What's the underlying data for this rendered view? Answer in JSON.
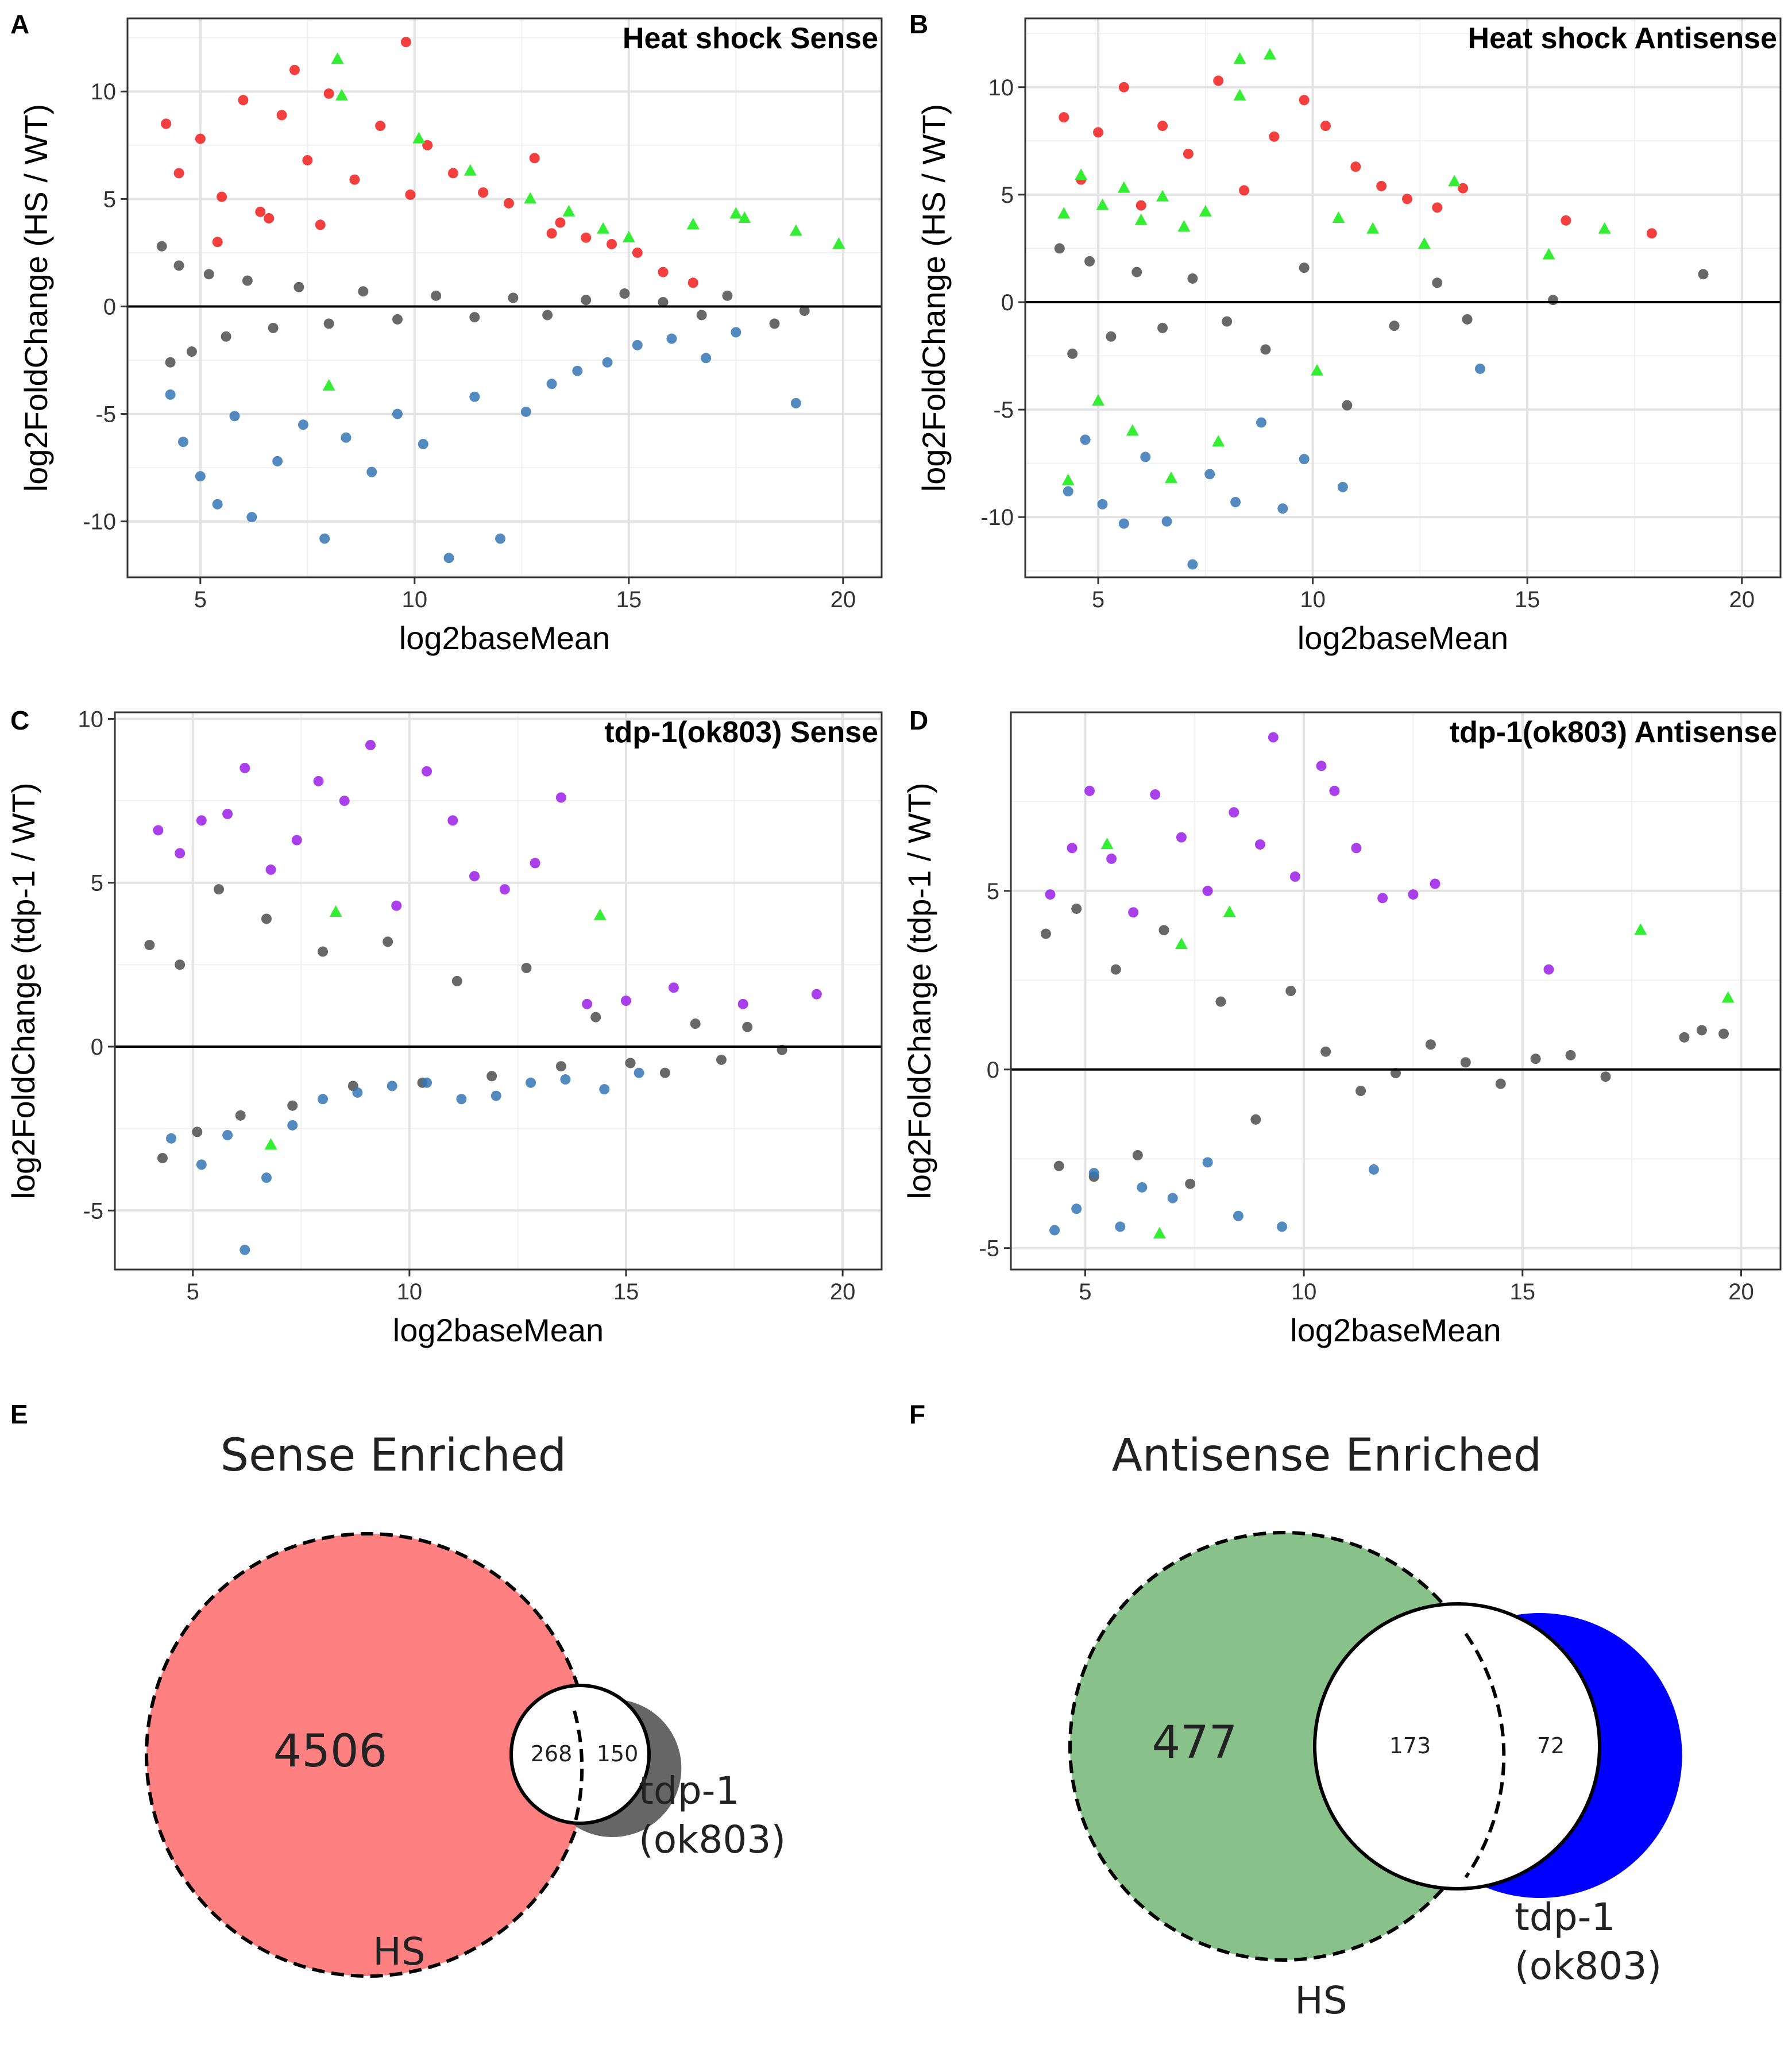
{
  "panel_letters": [
    "A",
    "B",
    "C",
    "D",
    "E",
    "F"
  ],
  "chart_data": [
    {
      "id": "A",
      "type": "scatter",
      "title": "Heat shock Sense",
      "xlabel": "log2baseMean",
      "ylabel": "log2FoldChange (HS / WT)",
      "xlim": [
        3.3,
        20.9
      ],
      "ylim": [
        -12.6,
        13.4
      ],
      "xticks": [
        5,
        10,
        15,
        20
      ],
      "yticks": [
        -10,
        -5,
        0,
        5,
        10
      ],
      "grid": true,
      "hline": 0,
      "series": [
        {
          "color": "#4d4d4d",
          "shape": "circle",
          "x": [
            4.1,
            4.3,
            4.5,
            4.8,
            5.2,
            5.6,
            6.1,
            6.7,
            7.3,
            8.0,
            8.8,
            9.6,
            10.5,
            11.4,
            12.3,
            13.1,
            14.0,
            14.9,
            15.8,
            16.7,
            17.3,
            18.4,
            19.1
          ],
          "y": [
            2.8,
            -2.6,
            1.9,
            -2.1,
            1.5,
            -1.4,
            1.2,
            -1.0,
            0.9,
            -0.8,
            0.7,
            -0.6,
            0.5,
            -0.5,
            0.4,
            -0.4,
            0.3,
            0.6,
            0.2,
            -0.4,
            0.5,
            -0.8,
            -0.2
          ]
        },
        {
          "color": "#f21d1d",
          "shape": "circle",
          "x": [
            4.2,
            4.5,
            5.0,
            5.5,
            6.0,
            6.4,
            6.9,
            7.2,
            7.5,
            8.0,
            8.6,
            9.2,
            9.8,
            10.3,
            10.9,
            11.6,
            12.2,
            12.8,
            13.4,
            14.0,
            14.6,
            15.2,
            15.8,
            16.5,
            13.2,
            9.9,
            7.8,
            6.6,
            5.4
          ],
          "y": [
            8.5,
            6.2,
            7.8,
            5.1,
            9.6,
            4.4,
            8.9,
            11.0,
            6.8,
            9.9,
            5.9,
            8.4,
            12.3,
            7.5,
            6.2,
            5.3,
            4.8,
            6.9,
            3.9,
            3.2,
            2.9,
            2.5,
            1.6,
            1.1,
            3.4,
            5.2,
            3.8,
            4.1,
            3.0
          ]
        },
        {
          "color": "#3575b5",
          "shape": "circle",
          "x": [
            4.3,
            4.6,
            5.0,
            5.4,
            5.8,
            6.2,
            6.8,
            7.4,
            7.9,
            8.4,
            9.0,
            9.6,
            10.2,
            10.8,
            11.4,
            12.0,
            12.6,
            13.2,
            13.8,
            14.5,
            15.2,
            16.0,
            16.8,
            17.5,
            18.9
          ],
          "y": [
            -4.1,
            -6.3,
            -7.9,
            -9.2,
            -5.1,
            -9.8,
            -7.2,
            -5.5,
            -10.8,
            -6.1,
            -7.7,
            -5.0,
            -6.4,
            -11.7,
            -4.2,
            -10.8,
            -4.9,
            -3.6,
            -3.0,
            -2.6,
            -1.8,
            -1.5,
            -2.4,
            -1.2,
            -4.5
          ]
        },
        {
          "color": "#33ee33",
          "shape": "triangle",
          "x": [
            8.2,
            8.3,
            10.1,
            11.3,
            12.7,
            13.6,
            14.4,
            15.0,
            16.5,
            17.5,
            17.7,
            18.9,
            19.9,
            8.0
          ],
          "y": [
            11.5,
            9.8,
            7.8,
            6.3,
            5.0,
            4.4,
            3.6,
            3.2,
            3.8,
            4.3,
            4.1,
            3.5,
            2.9,
            -3.7
          ]
        }
      ]
    },
    {
      "id": "B",
      "type": "scatter",
      "title": "Heat shock Antisense",
      "xlabel": "log2baseMean",
      "ylabel": "log2FoldChange (HS / WT)",
      "xlim": [
        3.3,
        20.9
      ],
      "ylim": [
        -12.8,
        13.2
      ],
      "xticks": [
        5,
        10,
        15,
        20
      ],
      "yticks": [
        -10,
        -5,
        0,
        5,
        10
      ],
      "grid": true,
      "hline": 0,
      "series": [
        {
          "color": "#4d4d4d",
          "shape": "circle",
          "x": [
            4.1,
            4.4,
            4.8,
            5.3,
            5.9,
            6.5,
            7.2,
            8.0,
            8.9,
            9.8,
            10.8,
            11.9,
            12.9,
            13.6,
            15.6,
            19.1
          ],
          "y": [
            2.5,
            -2.4,
            1.9,
            -1.6,
            1.4,
            -1.2,
            1.1,
            -0.9,
            -2.2,
            1.6,
            -4.8,
            -1.1,
            0.9,
            -0.8,
            0.1,
            1.3
          ]
        },
        {
          "color": "#f21d1d",
          "shape": "circle",
          "x": [
            4.2,
            4.6,
            5.0,
            5.6,
            6.0,
            6.5,
            7.1,
            7.8,
            8.4,
            9.1,
            9.8,
            10.3,
            11.0,
            11.6,
            12.2,
            12.9,
            13.5,
            15.9,
            17.9
          ],
          "y": [
            8.6,
            5.7,
            7.9,
            10.0,
            4.5,
            8.2,
            6.9,
            10.3,
            5.2,
            7.7,
            9.4,
            8.2,
            6.3,
            5.4,
            4.8,
            4.4,
            5.3,
            3.8,
            3.2
          ]
        },
        {
          "color": "#3575b5",
          "shape": "circle",
          "x": [
            4.3,
            4.7,
            5.1,
            5.6,
            6.1,
            6.6,
            7.2,
            7.6,
            8.2,
            8.8,
            9.3,
            9.8,
            10.7,
            13.9
          ],
          "y": [
            -8.8,
            -6.4,
            -9.4,
            -10.3,
            -7.2,
            -10.2,
            -12.2,
            -8.0,
            -9.3,
            -5.6,
            -9.6,
            -7.3,
            -8.6,
            -3.1
          ]
        },
        {
          "color": "#33ee33",
          "shape": "triangle",
          "x": [
            4.2,
            4.6,
            5.1,
            5.6,
            6.0,
            6.5,
            7.0,
            7.5,
            8.3,
            8.3,
            9.0,
            10.6,
            11.4,
            12.6,
            13.3,
            15.5,
            16.8,
            4.3,
            5.0,
            5.8,
            6.7,
            7.8,
            10.1
          ],
          "y": [
            4.1,
            5.9,
            4.5,
            5.3,
            3.8,
            4.9,
            3.5,
            4.2,
            11.3,
            9.6,
            11.5,
            3.9,
            3.4,
            2.7,
            5.6,
            2.2,
            3.4,
            -8.3,
            -4.6,
            -6.0,
            -8.2,
            -6.5,
            -3.2
          ]
        }
      ]
    },
    {
      "id": "C",
      "type": "scatter",
      "title": "tdp-1(ok803) Sense",
      "xlabel": "log2baseMean",
      "ylabel": "log2FoldChange (tdp-1 / WT)",
      "xlim": [
        3.2,
        20.9
      ],
      "ylim": [
        -6.8,
        10.2
      ],
      "xticks": [
        5,
        10,
        15,
        20
      ],
      "yticks": [
        -5,
        0,
        5,
        10
      ],
      "grid": true,
      "hline": 0,
      "series": [
        {
          "color": "#4d4d4d",
          "shape": "circle",
          "x": [
            4.0,
            4.3,
            4.7,
            5.1,
            5.6,
            6.1,
            6.7,
            7.3,
            8.0,
            8.7,
            9.5,
            10.3,
            11.1,
            11.9,
            12.7,
            13.5,
            14.3,
            15.1,
            15.9,
            16.6,
            17.2,
            17.8,
            18.6
          ],
          "y": [
            3.1,
            -3.4,
            2.5,
            -2.6,
            4.8,
            -2.1,
            3.9,
            -1.8,
            2.9,
            -1.2,
            3.2,
            -1.1,
            2.0,
            -0.9,
            2.4,
            -0.6,
            0.9,
            -0.5,
            -0.8,
            0.7,
            -0.4,
            0.6,
            -0.1
          ]
        },
        {
          "color": "#9a1ee8",
          "shape": "circle",
          "x": [
            4.2,
            4.7,
            5.2,
            5.8,
            6.2,
            6.8,
            7.4,
            7.9,
            8.5,
            9.1,
            9.7,
            10.4,
            11.0,
            11.5,
            12.2,
            12.9,
            13.5,
            14.1,
            15.0,
            16.1,
            17.7,
            19.4
          ],
          "y": [
            6.6,
            5.9,
            6.9,
            7.1,
            8.5,
            5.4,
            6.3,
            8.1,
            7.5,
            9.2,
            4.3,
            8.4,
            6.9,
            5.2,
            4.8,
            5.6,
            7.6,
            1.3,
            1.4,
            1.8,
            1.3,
            1.6
          ]
        },
        {
          "color": "#3575b5",
          "shape": "circle",
          "x": [
            4.5,
            5.2,
            5.8,
            6.2,
            6.7,
            7.3,
            8.0,
            8.8,
            9.6,
            10.4,
            11.2,
            12.0,
            12.8,
            13.6,
            14.5,
            15.3
          ],
          "y": [
            -2.8,
            -3.6,
            -2.7,
            -6.2,
            -4.0,
            -2.4,
            -1.6,
            -1.4,
            -1.2,
            -1.1,
            -1.6,
            -1.5,
            -1.1,
            -1.0,
            -1.3,
            -0.8
          ]
        },
        {
          "color": "#33ee33",
          "shape": "triangle",
          "x": [
            14.4,
            6.8,
            8.3
          ],
          "y": [
            4.0,
            -3.0,
            4.1
          ]
        }
      ]
    },
    {
      "id": "D",
      "type": "scatter",
      "title": "tdp-1(ok803) Antisense",
      "xlabel": "log2baseMean",
      "ylabel": "log2FoldChange (tdp-1 / WT)",
      "xlim": [
        3.3,
        20.9
      ],
      "ylim": [
        -5.6,
        10.0
      ],
      "xticks": [
        5,
        10,
        15,
        20
      ],
      "yticks": [
        -5,
        0,
        5
      ],
      "grid": true,
      "hline": 0,
      "series": [
        {
          "color": "#4d4d4d",
          "shape": "circle",
          "x": [
            4.1,
            4.4,
            4.8,
            5.2,
            5.7,
            6.2,
            6.8,
            7.4,
            8.1,
            8.9,
            9.7,
            10.5,
            11.3,
            12.1,
            12.9,
            13.7,
            14.5,
            15.3,
            16.1,
            16.9,
            18.7,
            19.1,
            19.6
          ],
          "y": [
            3.8,
            -2.7,
            4.5,
            -3.0,
            2.8,
            -2.4,
            3.9,
            -3.2,
            1.9,
            -1.4,
            2.2,
            0.5,
            -0.6,
            -0.1,
            0.7,
            0.2,
            -0.4,
            0.3,
            0.4,
            -0.2,
            0.9,
            1.1,
            1.0
          ]
        },
        {
          "color": "#9a1ee8",
          "shape": "circle",
          "x": [
            4.2,
            4.7,
            5.1,
            5.6,
            6.1,
            6.6,
            7.2,
            7.8,
            8.4,
            9.0,
            9.3,
            9.8,
            10.4,
            10.7,
            11.2,
            11.8,
            12.5,
            13.0,
            15.6
          ],
          "y": [
            4.9,
            6.2,
            7.8,
            5.9,
            4.4,
            7.7,
            6.5,
            5.0,
            7.2,
            6.3,
            9.3,
            5.4,
            8.5,
            7.8,
            6.2,
            4.8,
            4.9,
            5.2,
            2.8
          ]
        },
        {
          "color": "#3575b5",
          "shape": "circle",
          "x": [
            4.3,
            4.8,
            5.2,
            5.8,
            6.3,
            7.0,
            7.8,
            8.5,
            9.5,
            11.6
          ],
          "y": [
            -4.5,
            -3.9,
            -2.9,
            -4.4,
            -3.3,
            -3.6,
            -2.6,
            -4.1,
            -4.4,
            -2.8
          ]
        },
        {
          "color": "#33ee33",
          "shape": "triangle",
          "x": [
            5.5,
            6.7,
            8.3,
            7.2,
            17.7,
            19.7
          ],
          "y": [
            6.3,
            -4.6,
            4.4,
            3.5,
            3.9,
            2.0
          ]
        }
      ]
    }
  ],
  "venn": [
    {
      "id": "E",
      "title": "Sense Enriched",
      "left_only": "4506",
      "intersection": "268",
      "right_only": "150",
      "left_label": "HS",
      "right_label_line1": "tdp-1",
      "right_label_line2": "(ok803)",
      "left_color": "#ff8080",
      "right_color": "#666666",
      "intersection_color": "#ffffff"
    },
    {
      "id": "F",
      "title": "Antisense Enriched",
      "left_only": "477",
      "intersection": "173",
      "right_only": "72",
      "left_label": "HS",
      "right_label_line1": "tdp-1",
      "right_label_line2": "(ok803)",
      "left_color": "#88c28a",
      "right_color": "#0000ff",
      "intersection_color": "#ffffff"
    }
  ]
}
